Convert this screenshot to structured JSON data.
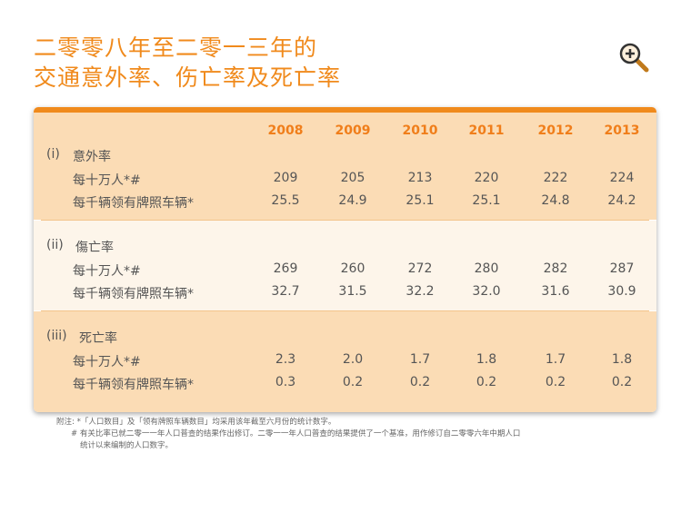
{
  "title": {
    "line1": "二零零八年至二零一三年的",
    "line2": "交通意外率、伤亡率及死亡率"
  },
  "zoom_icon": "zoom-in-icon",
  "years": [
    "2008",
    "2009",
    "2010",
    "2011",
    "2012",
    "2013"
  ],
  "sections": [
    {
      "index": "(i)",
      "name": "意外率",
      "rows": [
        {
          "label": "每十万人*#",
          "values": [
            "209",
            "205",
            "213",
            "220",
            "222",
            "224"
          ]
        },
        {
          "label": "每千辆领有牌照车辆*",
          "values": [
            "25.5",
            "24.9",
            "25.1",
            "25.1",
            "24.8",
            "24.2"
          ]
        }
      ]
    },
    {
      "index": "(ii)",
      "name": "傷亡率",
      "rows": [
        {
          "label": "每十万人*#",
          "values": [
            "269",
            "260",
            "272",
            "280",
            "282",
            "287"
          ]
        },
        {
          "label": "每千辆领有牌照车辆*",
          "values": [
            "32.7",
            "31.5",
            "32.2",
            "32.0",
            "31.6",
            "30.9"
          ]
        }
      ]
    },
    {
      "index": "(iii)",
      "name": "死亡率",
      "rows": [
        {
          "label": "每十万人*#",
          "values": [
            "2.3",
            "2.0",
            "1.7",
            "1.8",
            "1.7",
            "1.8"
          ]
        },
        {
          "label": "每千辆领有牌照车辆*",
          "values": [
            "0.3",
            "0.2",
            "0.2",
            "0.2",
            "0.2",
            "0.2"
          ]
        }
      ]
    }
  ],
  "notes": {
    "line1": "附注: *「人口数目」及「领有牌照车辆数目」均采用该年截至六月份的统计数字。",
    "line2": "# 有关比率已就二零一一年人口普查的结果作出修订。二零一一年人口普查的结果提供了一个基准，用作修订自二零零六年中期人口",
    "line3": "统计以来编制的人口数字。"
  },
  "colors": {
    "accent": "#f08a1c",
    "band_orange": "#fbdcb5",
    "band_light": "#fdf5ea"
  }
}
